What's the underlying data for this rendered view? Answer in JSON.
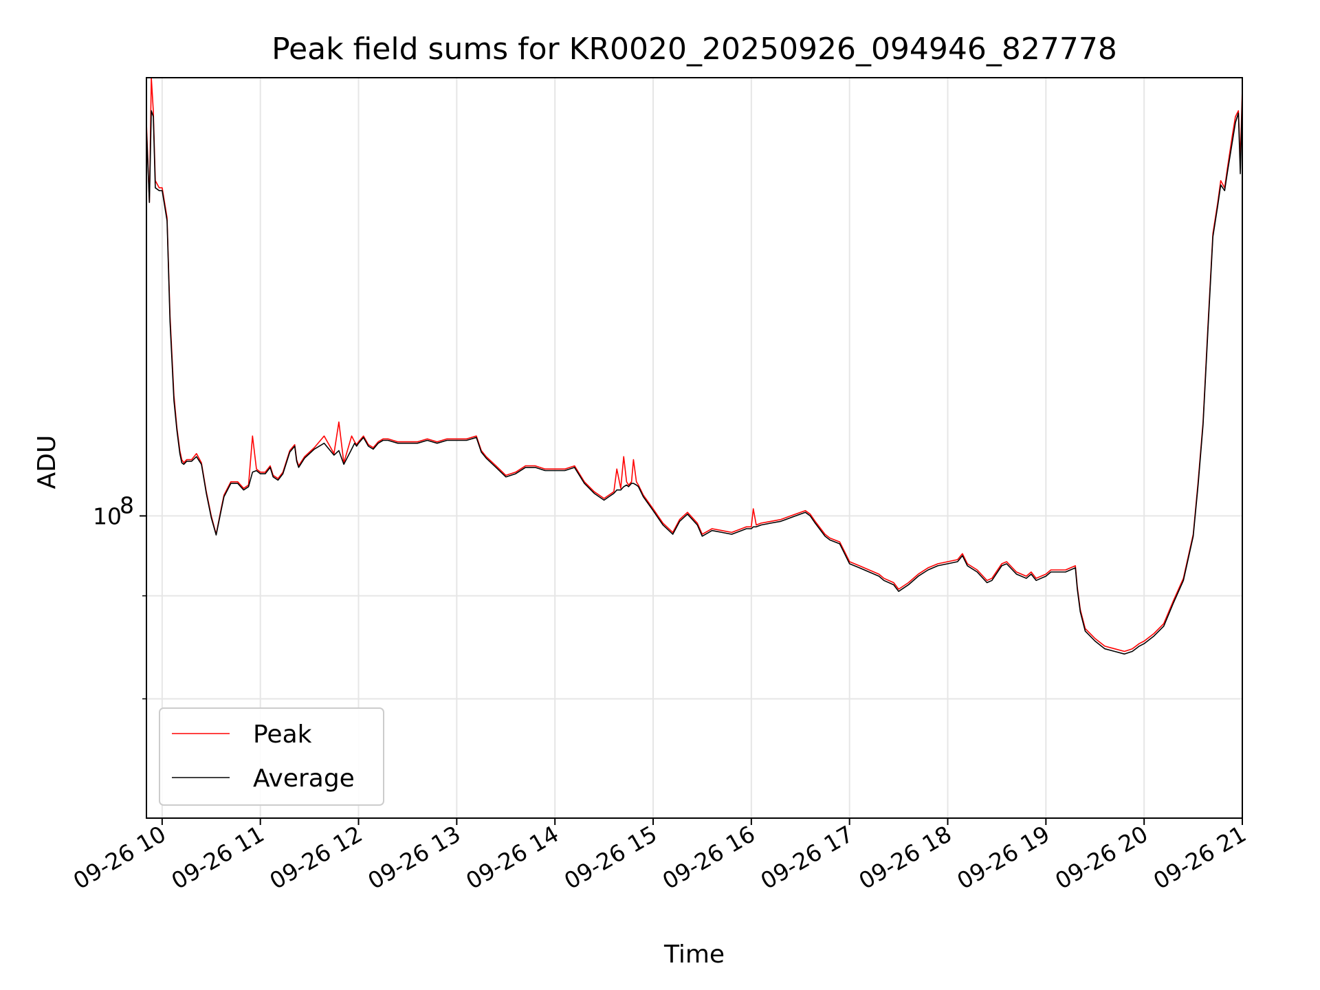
{
  "chart_data": {
    "type": "line",
    "title": "Peak field sums for KR0020_20250926_094946_827778",
    "xlabel": "Time",
    "ylabel": "ADU",
    "x_tick_labels": [
      "09-26 10",
      "09-26 11",
      "09-26 12",
      "09-26 13",
      "09-26 14",
      "09-26 15",
      "09-26 16",
      "09-26 17",
      "09-26 18",
      "09-26 19",
      "09-26 20",
      "09-26 21"
    ],
    "x_tick_hours": [
      10,
      11,
      12,
      13,
      14,
      15,
      16,
      17,
      18,
      19,
      20,
      21
    ],
    "xlim_hours": [
      9.84,
      21.0
    ],
    "y_scale": "log",
    "ylim": [
      43000000.0,
      340000000.0
    ],
    "y_major_ticks": [
      {
        "value": 100000000.0,
        "base": "10",
        "exp": "8"
      }
    ],
    "y_minor_ticks": [
      60000000.0,
      80000000.0
    ],
    "grid": true,
    "legend_position": "lower-left",
    "series": [
      {
        "name": "Peak",
        "color": "#ff0000",
        "x_hours": [
          9.84,
          9.87,
          9.89,
          9.91,
          9.93,
          9.97,
          10.0,
          10.05,
          10.08,
          10.12,
          10.15,
          10.18,
          10.2,
          10.22,
          10.25,
          10.3,
          10.35,
          10.4,
          10.45,
          10.5,
          10.55,
          10.6,
          10.63,
          10.7,
          10.77,
          10.83,
          10.88,
          10.92,
          10.96,
          11.0,
          11.05,
          11.1,
          11.13,
          11.18,
          11.23,
          11.3,
          11.35,
          11.37,
          11.39,
          11.45,
          11.55,
          11.65,
          11.75,
          11.8,
          11.85,
          11.93,
          11.96,
          11.98,
          12.0,
          12.05,
          12.1,
          12.15,
          12.2,
          12.25,
          12.3,
          12.4,
          12.5,
          12.6,
          12.7,
          12.8,
          12.9,
          13.0,
          13.1,
          13.2,
          13.25,
          13.3,
          13.4,
          13.5,
          13.6,
          13.7,
          13.8,
          13.9,
          14.0,
          14.1,
          14.2,
          14.3,
          14.4,
          14.5,
          14.55,
          14.6,
          14.63,
          14.67,
          14.7,
          14.73,
          14.75,
          14.78,
          14.8,
          14.83,
          14.85,
          14.9,
          15.0,
          15.1,
          15.2,
          15.27,
          15.35,
          15.45,
          15.5,
          15.6,
          15.7,
          15.8,
          15.9,
          15.95,
          16.0,
          16.02,
          16.05,
          16.1,
          16.2,
          16.3,
          16.4,
          16.5,
          16.55,
          16.6,
          16.65,
          16.75,
          16.8,
          16.9,
          16.95,
          17.0,
          17.1,
          17.2,
          17.3,
          17.35,
          17.45,
          17.5,
          17.6,
          17.7,
          17.8,
          17.9,
          18.0,
          18.1,
          18.15,
          18.2,
          18.3,
          18.4,
          18.45,
          18.55,
          18.6,
          18.7,
          18.8,
          18.85,
          18.9,
          18.95,
          19.0,
          19.05,
          19.1,
          19.2,
          19.3,
          19.32,
          19.35,
          19.4,
          19.5,
          19.6,
          19.7,
          19.8,
          19.88,
          19.95,
          20.0,
          20.1,
          20.2,
          20.3,
          20.4,
          20.5,
          20.55,
          20.6,
          20.65,
          20.7,
          20.75,
          20.78,
          20.82,
          20.85,
          20.9,
          20.93,
          20.96,
          20.98,
          21.0
        ],
        "values": [
          300000000.0,
          240000000.0,
          340000000.0,
          310000000.0,
          255000000.0,
          250000000.0,
          250000000.0,
          230000000.0,
          175000000.0,
          140000000.0,
          128000000.0,
          120000000.0,
          117000000.0,
          116000000.0,
          117000000.0,
          117000000.0,
          119000000.0,
          116000000.0,
          107000000.0,
          100000000.0,
          95000000.0,
          102000000.0,
          106000000.0,
          110000000.0,
          110000000.0,
          108000000.0,
          109000000.0,
          125000000.0,
          114000000.0,
          113000000.0,
          113000000.0,
          115000000.0,
          112000000.0,
          111000000.0,
          113000000.0,
          120000000.0,
          122000000.0,
          117000000.0,
          115000000.0,
          118000000.0,
          121000000.0,
          125000000.0,
          119000000.0,
          130000000.0,
          116000000.0,
          125000000.0,
          123000000.0,
          122000000.0,
          123000000.0,
          125000000.0,
          122000000.0,
          121000000.0,
          123000000.0,
          124000000.0,
          124000000.0,
          123000000.0,
          123000000.0,
          123000000.0,
          124000000.0,
          123000000.0,
          124000000.0,
          124000000.0,
          124000000.0,
          125000000.0,
          120000000.0,
          118000000.0,
          115000000.0,
          112000000.0,
          113000000.0,
          115000000.0,
          115000000.0,
          114000000.0,
          114000000.0,
          114000000.0,
          115000000.0,
          110000000.0,
          107000000.0,
          105000000.0,
          106000000.0,
          107000000.0,
          114000000.0,
          108000000.0,
          118000000.0,
          110000000.0,
          109000000.0,
          110000000.0,
          117000000.0,
          110000000.0,
          109000000.0,
          106000000.0,
          102000000.0,
          98000000.0,
          95500000.0,
          99000000.0,
          101000000.0,
          98000000.0,
          95000000.0,
          96500000.0,
          96000000.0,
          95500000.0,
          96500000.0,
          97000000.0,
          97000000.0,
          102000000.0,
          97500000.0,
          98000000.0,
          98500000.0,
          99000000.0,
          100000000.0,
          101000000.0,
          101500000.0,
          100500000.0,
          98500000.0,
          95000000.0,
          94000000.0,
          93000000.0,
          90500000.0,
          88000000.0,
          87000000.0,
          86000000.0,
          85000000.0,
          84000000.0,
          83000000.0,
          81500000.0,
          83000000.0,
          85000000.0,
          86500000.0,
          87500000.0,
          88000000.0,
          88500000.0,
          90000000.0,
          87500000.0,
          86000000.0,
          83500000.0,
          84000000.0,
          87500000.0,
          88000000.0,
          85500000.0,
          84500000.0,
          85500000.0,
          84000000.0,
          84500000.0,
          85000000.0,
          86000000.0,
          86000000.0,
          86000000.0,
          87000000.0,
          82000000.0,
          77000000.0,
          73000000.0,
          71000000.0,
          69500000.0,
          69000000.0,
          68500000.0,
          69000000.0,
          70000000.0,
          70500000.0,
          72000000.0,
          74000000.0,
          79000000.0,
          84000000.0,
          95000000.0,
          110000000.0,
          130000000.0,
          170000000.0,
          220000000.0,
          240000000.0,
          255000000.0,
          250000000.0,
          265000000.0,
          290000000.0,
          305000000.0,
          310000000.0,
          270000000.0,
          330000000.0
        ]
      },
      {
        "name": "Average",
        "color": "#000000",
        "x_hours": [
          9.84,
          9.87,
          9.89,
          9.91,
          9.93,
          9.97,
          10.0,
          10.05,
          10.08,
          10.12,
          10.15,
          10.18,
          10.2,
          10.22,
          10.25,
          10.3,
          10.35,
          10.4,
          10.45,
          10.5,
          10.55,
          10.6,
          10.63,
          10.7,
          10.77,
          10.83,
          10.88,
          10.92,
          10.96,
          11.0,
          11.05,
          11.1,
          11.13,
          11.18,
          11.23,
          11.3,
          11.35,
          11.37,
          11.39,
          11.45,
          11.55,
          11.65,
          11.75,
          11.8,
          11.85,
          11.93,
          11.96,
          11.98,
          12.0,
          12.05,
          12.1,
          12.15,
          12.2,
          12.25,
          12.3,
          12.4,
          12.5,
          12.6,
          12.7,
          12.8,
          12.9,
          13.0,
          13.1,
          13.2,
          13.25,
          13.3,
          13.4,
          13.5,
          13.6,
          13.7,
          13.8,
          13.9,
          14.0,
          14.1,
          14.2,
          14.3,
          14.4,
          14.5,
          14.55,
          14.6,
          14.63,
          14.67,
          14.7,
          14.73,
          14.75,
          14.78,
          14.8,
          14.83,
          14.85,
          14.9,
          15.0,
          15.1,
          15.2,
          15.27,
          15.35,
          15.45,
          15.5,
          15.6,
          15.7,
          15.8,
          15.9,
          15.95,
          16.0,
          16.02,
          16.05,
          16.1,
          16.2,
          16.3,
          16.4,
          16.5,
          16.55,
          16.6,
          16.65,
          16.75,
          16.8,
          16.9,
          16.95,
          17.0,
          17.1,
          17.2,
          17.3,
          17.35,
          17.45,
          17.5,
          17.6,
          17.7,
          17.8,
          17.9,
          18.0,
          18.1,
          18.15,
          18.2,
          18.3,
          18.4,
          18.45,
          18.55,
          18.6,
          18.7,
          18.8,
          18.85,
          18.9,
          18.95,
          19.0,
          19.05,
          19.1,
          19.2,
          19.3,
          19.32,
          19.35,
          19.4,
          19.5,
          19.6,
          19.7,
          19.8,
          19.88,
          19.95,
          20.0,
          20.1,
          20.2,
          20.3,
          20.4,
          20.5,
          20.55,
          20.6,
          20.65,
          20.7,
          20.75,
          20.78,
          20.82,
          20.85,
          20.9,
          20.93,
          20.96,
          20.98,
          21.0
        ],
        "values": [
          295000000.0,
          240000000.0,
          310000000.0,
          305000000.0,
          250000000.0,
          248000000.0,
          248000000.0,
          228000000.0,
          172000000.0,
          138000000.0,
          127000000.0,
          119000000.0,
          116000000.0,
          115500000.0,
          116500000.0,
          116500000.0,
          118000000.0,
          115500000.0,
          106500000.0,
          99500000.0,
          94800000.0,
          101500000.0,
          105500000.0,
          109500000.0,
          109500000.0,
          107500000.0,
          108500000.0,
          113000000.0,
          113500000.0,
          112500000.0,
          112500000.0,
          114500000.0,
          111500000.0,
          110500000.0,
          112500000.0,
          119500000.0,
          121500000.0,
          116500000.0,
          114500000.0,
          117500000.0,
          120500000.0,
          122500000.0,
          118500000.0,
          120000000.0,
          115500000.0,
          120500000.0,
          122500000.0,
          121500000.0,
          122500000.0,
          124500000.0,
          121500000.0,
          120500000.0,
          122500000.0,
          123500000.0,
          123500000.0,
          122500000.0,
          122500000.0,
          122500000.0,
          123500000.0,
          122500000.0,
          123500000.0,
          123500000.0,
          123500000.0,
          124500000.0,
          119500000.0,
          117500000.0,
          114500000.0,
          111500000.0,
          112500000.0,
          114500000.0,
          114500000.0,
          113500000.0,
          113500000.0,
          113500000.0,
          114500000.0,
          109500000.0,
          106500000.0,
          104500000.0,
          105500000.0,
          106500000.0,
          107500000.0,
          107500000.0,
          108500000.0,
          109000000.0,
          108500000.0,
          109500000.0,
          109500000.0,
          109000000.0,
          108500000.0,
          105500000.0,
          101500000.0,
          97500000.0,
          95000000.0,
          98500000.0,
          100500000.0,
          97500000.0,
          94500000.0,
          96000000.0,
          95500000.0,
          95000000.0,
          96000000.0,
          96500000.0,
          96500000.0,
          97000000.0,
          97000000.0,
          97500000.0,
          98000000.0,
          98500000.0,
          99500000.0,
          100500000.0,
          101000000.0,
          100000000.0,
          98000000.0,
          94500000.0,
          93500000.0,
          92500000.0,
          90000000.0,
          87500000.0,
          86500000.0,
          85500000.0,
          84500000.0,
          83500000.0,
          82500000.0,
          81000000.0,
          82500000.0,
          84500000.0,
          86000000.0,
          87000000.0,
          87500000.0,
          88000000.0,
          89500000.0,
          87000000.0,
          85500000.0,
          83000000.0,
          83500000.0,
          87000000.0,
          87500000.0,
          85000000.0,
          84000000.0,
          85000000.0,
          83500000.0,
          84000000.0,
          84500000.0,
          85500000.0,
          85500000.0,
          85500000.0,
          86500000.0,
          81500000.0,
          76500000.0,
          72500000.0,
          70500000.0,
          69000000.0,
          68500000.0,
          68000000.0,
          68500000.0,
          69500000.0,
          70000000.0,
          71500000.0,
          73500000.0,
          78500000.0,
          83500000.0,
          94500000.0,
          109000000.0,
          129000000.0,
          168000000.0,
          218000000.0,
          238000000.0,
          252000000.0,
          248000000.0,
          262000000.0,
          285000000.0,
          300000000.0,
          308000000.0,
          260000000.0,
          325000000.0
        ]
      }
    ]
  }
}
